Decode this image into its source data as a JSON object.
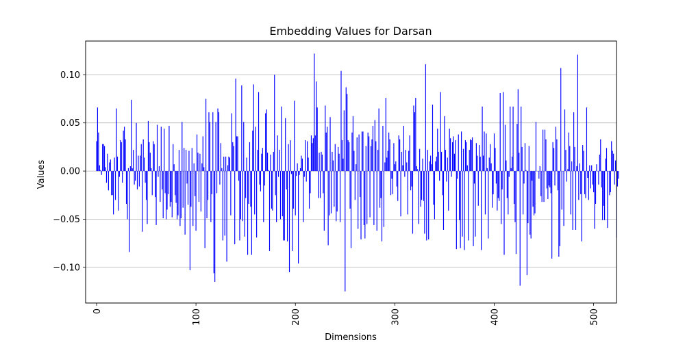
{
  "chart_data": {
    "type": "bar",
    "title": "Embedding Values for Darsan",
    "xlabel": "Dimensions",
    "ylabel": "Values",
    "xlim": [
      -11,
      523
    ],
    "ylim": [
      -0.137,
      0.135
    ],
    "xticks": [
      0,
      100,
      200,
      300,
      400,
      500
    ],
    "yticks": [
      0.1,
      0.05,
      0.0,
      -0.05,
      -0.1
    ],
    "ytick_labels": [
      "0.10",
      "0.05",
      "0.00",
      "−0.05",
      "−0.10"
    ],
    "grid": "y",
    "bar_color": "#0000ff",
    "n_dims": 512,
    "values": [
      0.031,
      0.066,
      0.04,
      0.006,
      0.001,
      -0.004,
      0.028,
      0.028,
      0.026,
      0.004,
      -0.012,
      0.018,
      -0.02,
      0.009,
      0.012,
      -0.025,
      -0.025,
      -0.045,
      0.014,
      -0.03,
      0.065,
      0.015,
      -0.041,
      -0.006,
      0.032,
      0.03,
      -0.012,
      0.042,
      0.046,
      0.033,
      -0.034,
      -0.05,
      0.003,
      -0.084,
      0.005,
      0.074,
      0.003,
      0.022,
      -0.014,
      -0.01,
      0.05,
      -0.019,
      0.016,
      -0.016,
      0.016,
      0.028,
      -0.063,
      0.033,
      0.014,
      -0.012,
      -0.03,
      -0.055,
      0.052,
      0.03,
      0.019,
      0.003,
      -0.025,
      0.031,
      0.028,
      -0.027,
      -0.056,
      0.048,
      -0.006,
      0.005,
      -0.032,
      0.046,
      -0.019,
      -0.049,
      0.044,
      -0.023,
      -0.05,
      -0.04,
      -0.024,
      0.047,
      -0.037,
      -0.032,
      -0.048,
      0.028,
      0.007,
      -0.025,
      -0.033,
      -0.05,
      -0.046,
      0.022,
      -0.057,
      -0.049,
      0.051,
      -0.038,
      0.024,
      -0.066,
      0.022,
      -0.013,
      -0.035,
      0.021,
      -0.103,
      -0.037,
      0.024,
      -0.057,
      0.008,
      -0.026,
      -0.062,
      0.038,
      0.019,
      -0.032,
      0.018,
      -0.042,
      0.008,
      0.036,
      0.004,
      -0.08,
      0.075,
      -0.049,
      -0.03,
      0.061,
      0.051,
      -0.053,
      -0.024,
      0.061,
      -0.106,
      -0.115,
      0.051,
      -0.023,
      0.065,
      0.061,
      -0.014,
      0.029,
      0.003,
      -0.072,
      0.015,
      -0.067,
      0.015,
      -0.094,
      0.006,
      0.015,
      0.014,
      -0.046,
      0.06,
      0.03,
      0.026,
      -0.076,
      0.096,
      0.036,
      0.036,
      -0.01,
      -0.072,
      -0.05,
      0.089,
      -0.052,
      0.051,
      -0.068,
      -0.028,
      0.014,
      -0.087,
      -0.034,
      0.03,
      -0.037,
      -0.087,
      0.042,
      0.09,
      -0.045,
      0.046,
      -0.069,
      0.022,
      0.082,
      -0.014,
      -0.021,
      0.018,
      0.024,
      -0.053,
      -0.015,
      0.06,
      0.064,
      0.019,
      0.001,
      -0.083,
      0.017,
      -0.039,
      -0.041,
      0.02,
      0.1,
      -0.025,
      -0.053,
      0.037,
      -0.006,
      0.022,
      -0.05,
      0.067,
      -0.047,
      -0.072,
      -0.072,
      0.055,
      -0.019,
      -0.073,
      0.028,
      -0.105,
      0.032,
      -0.003,
      -0.083,
      -0.039,
      0.073,
      -0.046,
      -0.005,
      0.008,
      -0.096,
      -0.004,
      0.003,
      0.016,
      0.013,
      -0.053,
      -0.006,
      0.032,
      -0.011,
      0.031,
      0.014,
      -0.039,
      -0.023,
      0.037,
      0.029,
      0.034,
      0.122,
      0.037,
      0.093,
      0.066,
      -0.028,
      0.019,
      -0.028,
      0.02,
      0.017,
      -0.023,
      -0.062,
      0.068,
      0.04,
      0.046,
      -0.077,
      -0.046,
      0.056,
      -0.044,
      0.02,
      0.011,
      -0.037,
      0.028,
      -0.052,
      -0.042,
      0.025,
      0.018,
      -0.053,
      0.104,
      0.032,
      0.013,
      0.063,
      -0.125,
      0.087,
      0.08,
      0.032,
      0.03,
      -0.039,
      -0.08,
      0.04,
      0.057,
      0.021,
      -0.03,
      0.007,
      0.035,
      -0.06,
      0.038,
      -0.027,
      -0.071,
      0.041,
      0.041,
      -0.056,
      -0.07,
      0.026,
      -0.055,
      0.04,
      0.036,
      -0.048,
      0.026,
      0.033,
      0.047,
      -0.056,
      0.053,
      0.031,
      -0.062,
      0.022,
      0.065,
      -0.038,
      -0.028,
      -0.073,
      0.047,
      -0.058,
      0.009,
      0.076,
      0.014,
      0.021,
      0.04,
      0.033,
      -0.025,
      -0.008,
      -0.024,
      0.029,
      0.007,
      0.01,
      -0.016,
      -0.031,
      0.037,
      0.033,
      -0.047,
      0.02,
      0.006,
      0.047,
      -0.006,
      0.022,
      0.009,
      -0.045,
      0.021,
      0.037,
      -0.02,
      -0.016,
      -0.065,
      0.068,
      0.061,
      0.076,
      0.005,
      0.002,
      -0.055,
      0.023,
      -0.037,
      -0.03,
      0.013,
      -0.031,
      -0.065,
      0.111,
      -0.072,
      0.022,
      -0.071,
      0.01,
      0.016,
      0.007,
      0.069,
      -0.035,
      -0.05,
      0.01,
      0.015,
      0.044,
      0.02,
      -0.01,
      0.082,
      0.02,
      -0.025,
      -0.061,
      0.057,
      0.022,
      -0.011,
      0.014,
      -0.041,
      0.044,
      0.034,
      -0.006,
      0.03,
      0.036,
      0.018,
      0.032,
      -0.081,
      -0.008,
      0.038,
      -0.051,
      -0.08,
      0.041,
      -0.068,
      0.023,
      -0.082,
      0.032,
      0.03,
      0.006,
      -0.072,
      0.022,
      0.033,
      0.032,
      0.035,
      -0.078,
      -0.013,
      -0.068,
      0.029,
      0.016,
      -0.036,
      0.027,
      0.015,
      -0.082,
      0.067,
      0.016,
      0.041,
      -0.045,
      0.039,
      0.003,
      -0.07,
      0.014,
      0.028,
      0.008,
      -0.038,
      -0.024,
      0.039,
      0.024,
      -0.013,
      -0.041,
      -0.028,
      -0.031,
      0.081,
      -0.055,
      -0.019,
      0.082,
      -0.087,
      0.048,
      0.011,
      -0.028,
      -0.045,
      -0.006,
      0.067,
      0.003,
      0.015,
      0.067,
      -0.034,
      -0.053,
      -0.086,
      0.049,
      0.085,
      0.019,
      -0.119,
      0.067,
      0.025,
      -0.045,
      -0.013,
      0.029,
      0.001,
      -0.108,
      -0.054,
      0.026,
      -0.066,
      -0.07,
      -0.01,
      -0.037,
      -0.046,
      -0.044,
      0.051,
      0.0,
      0.0,
      -0.008,
      0.005,
      -0.026,
      -0.032,
      0.043,
      -0.032,
      0.043,
      0.033,
      -0.018,
      -0.029,
      -0.015,
      -0.017,
      -0.023,
      -0.091,
      0.03,
      0.024,
      -0.015,
      0.046,
      0.033,
      -0.02,
      -0.089,
      -0.078,
      0.107,
      -0.04,
      0.0,
      -0.057,
      0.064,
      0.022,
      -0.011,
      0.002,
      0.04,
      0.026,
      -0.045,
      0.01,
      -0.061,
      0.061,
      0.025,
      -0.061,
      0.005,
      0.121,
      -0.03,
      0.008,
      -0.024,
      -0.073,
      0.027,
      0.021,
      -0.024,
      -0.028,
      0.066,
      -0.007,
      -0.03,
      0.006,
      -0.018,
      0.006,
      -0.014,
      -0.022,
      -0.06,
      -0.034,
      0.007,
      0.0,
      -0.014,
      0.017,
      0.033,
      -0.017,
      -0.051,
      -0.036,
      -0.051,
      0.013,
      0.024,
      -0.059,
      0.0,
      -0.025,
      -0.022,
      0.031,
      0.021,
      0.018,
      -0.014,
      0.011,
      -0.069,
      -0.016,
      -0.008
    ]
  }
}
